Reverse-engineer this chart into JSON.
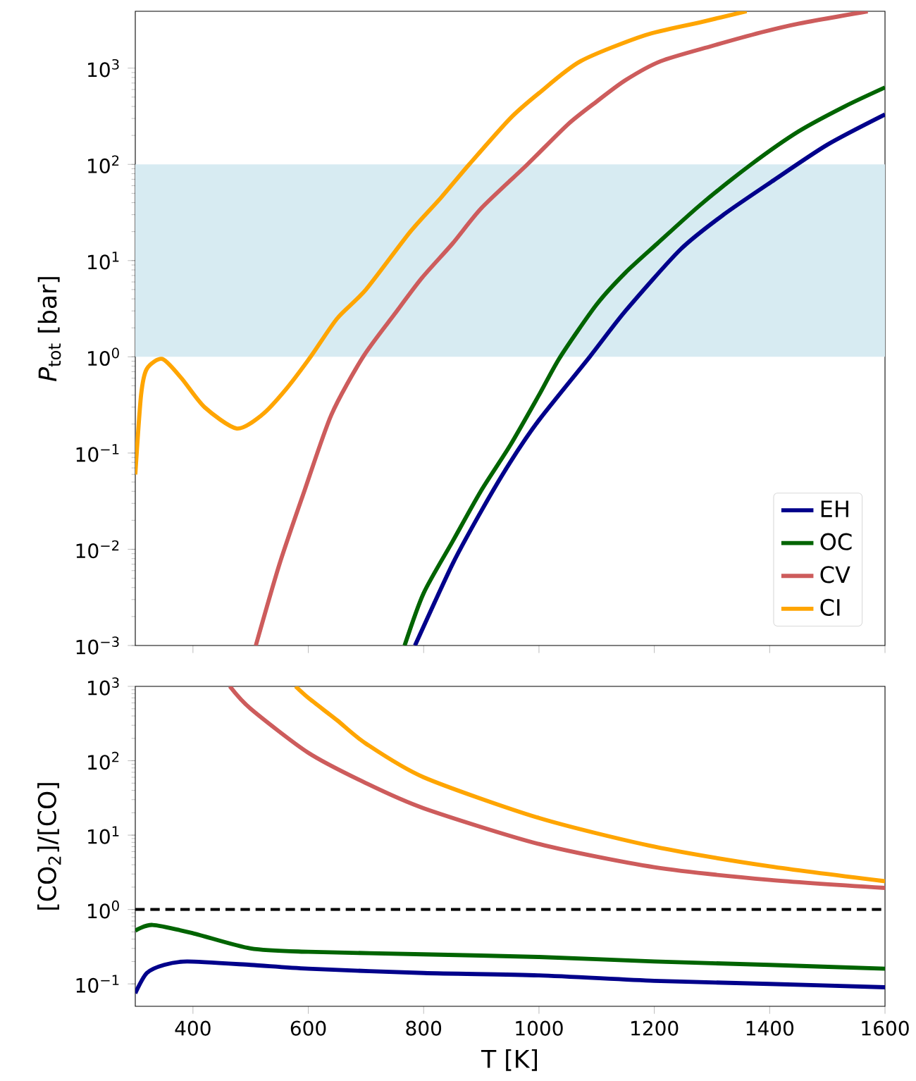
{
  "chart_data": [
    {
      "type": "line",
      "ylabel": "*P*$_{tot}$ [bar]",
      "log": "y",
      "legend": "bottom right",
      "tick_labels": "y",
      "xlim": [
        300,
        1600
      ],
      "ylim": [
        0.001,
        3900
      ],
      "xticks": [
        400,
        600,
        800,
        1000,
        1200,
        1400,
        1600
      ],
      "yticks": [
        {
          "value": 0.001,
          "label": "10$^{−3}$"
        },
        {
          "value": 0.01,
          "label": "10$^{−2}$"
        },
        {
          "value": 0.1,
          "label": "10$^{−1}$"
        },
        {
          "value": 1,
          "label": "10$^{0}$"
        },
        {
          "value": 10,
          "label": "10$^{1}$"
        },
        {
          "value": 100,
          "label": "10$^{2}$"
        },
        {
          "value": 1000,
          "label": "10$^{3}$"
        }
      ],
      "bands": [
        {
          "axis": "y",
          "from": 1,
          "to": 100,
          "color": "#d7ebf2"
        }
      ],
      "series": [
        {
          "name": "EH",
          "color": "#00008b",
          "x": [
            785,
            850,
            900,
            950,
            1000,
            1088,
            1150,
            1245,
            1320,
            1408,
            1500,
            1600
          ],
          "values": [
            0.001,
            0.007,
            0.025,
            0.08,
            0.22,
            1,
            3,
            13,
            30,
            69,
            160,
            330
          ]
        },
        {
          "name": "OC",
          "color": "#006400",
          "x": [
            767,
            800,
            850,
            899,
            950,
            1000,
            1037,
            1100,
            1150,
            1205,
            1280,
            1368,
            1450,
            1530,
            1600
          ],
          "values": [
            0.001,
            0.0035,
            0.012,
            0.04,
            0.12,
            0.4,
            1,
            3.5,
            7.5,
            15,
            38,
            100,
            220,
            400,
            630
          ]
        },
        {
          "name": "CV",
          "color": "#cd5c5c",
          "x": [
            509,
            550,
            593,
            640,
            695,
            750,
            797,
            850,
            900,
            980,
            1050,
            1100,
            1150,
            1211,
            1300,
            1385,
            1450,
            1570
          ],
          "values": [
            0.001,
            0.007,
            0.04,
            0.25,
            1,
            2.8,
            6.6,
            15,
            35,
            100,
            260,
            450,
            750,
            1180,
            1700,
            2350,
            2900,
            3900
          ]
        },
        {
          "name": "CI",
          "color": "#ffa500",
          "x": [
            300,
            310,
            320,
            347,
            380,
            420,
            476,
            520,
            560,
            604,
            650,
            700,
            777,
            830,
            879,
            950,
            1000,
            1072,
            1184,
            1280,
            1360
          ],
          "values": [
            0.06,
            0.4,
            0.75,
            0.95,
            0.6,
            0.3,
            0.18,
            0.25,
            0.45,
            1.0,
            2.5,
            5,
            20,
            45,
            100,
            300,
            550,
            1180,
            2200,
            3000,
            3900
          ]
        }
      ]
    },
    {
      "type": "line",
      "ylabel": "[CO$_{2}$]/[CO]",
      "xlabel": "T [K]",
      "log": "y",
      "xlim": [
        300,
        1600
      ],
      "ylim": [
        0.05,
        1000
      ],
      "xticks": [
        400,
        600,
        800,
        1000,
        1200,
        1400,
        1600
      ],
      "yticks": [
        {
          "value": 0.1,
          "label": "10$^{−1}$"
        },
        {
          "value": 1,
          "label": "10$^{0}$"
        },
        {
          "value": 10,
          "label": "10$^{1}$"
        },
        {
          "value": 100,
          "label": "10$^{2}$"
        },
        {
          "value": 1000,
          "label": "10$^{3}$"
        }
      ],
      "ref_lines": [
        {
          "axis": "y",
          "value": 1,
          "color": "#000000",
          "line_style": "dashed"
        }
      ],
      "series": [
        {
          "color": "#00008b",
          "x": [
            300,
            320,
            350,
            390,
            500,
            600,
            800,
            1000,
            1200,
            1400,
            1600
          ],
          "values": [
            0.075,
            0.14,
            0.18,
            0.2,
            0.18,
            0.16,
            0.14,
            0.13,
            0.11,
            0.1,
            0.09
          ]
        },
        {
          "color": "#006400",
          "x": [
            300,
            330,
            400,
            500,
            600,
            800,
            1000,
            1200,
            1400,
            1600
          ],
          "values": [
            0.52,
            0.62,
            0.48,
            0.3,
            0.27,
            0.25,
            0.23,
            0.2,
            0.18,
            0.16
          ]
        },
        {
          "color": "#cd5c5c",
          "x": [
            464,
            500,
            600,
            700,
            800,
            1000,
            1200,
            1400,
            1600
          ],
          "values": [
            1000,
            500,
            128,
            50,
            23,
            7.6,
            3.7,
            2.5,
            1.95
          ]
        },
        {
          "color": "#ffa500",
          "x": [
            578,
            600,
            650,
            700,
            800,
            1000,
            1200,
            1400,
            1600
          ],
          "values": [
            1000,
            700,
            350,
            170,
            60,
            17,
            7,
            3.8,
            2.4
          ]
        }
      ]
    }
  ]
}
